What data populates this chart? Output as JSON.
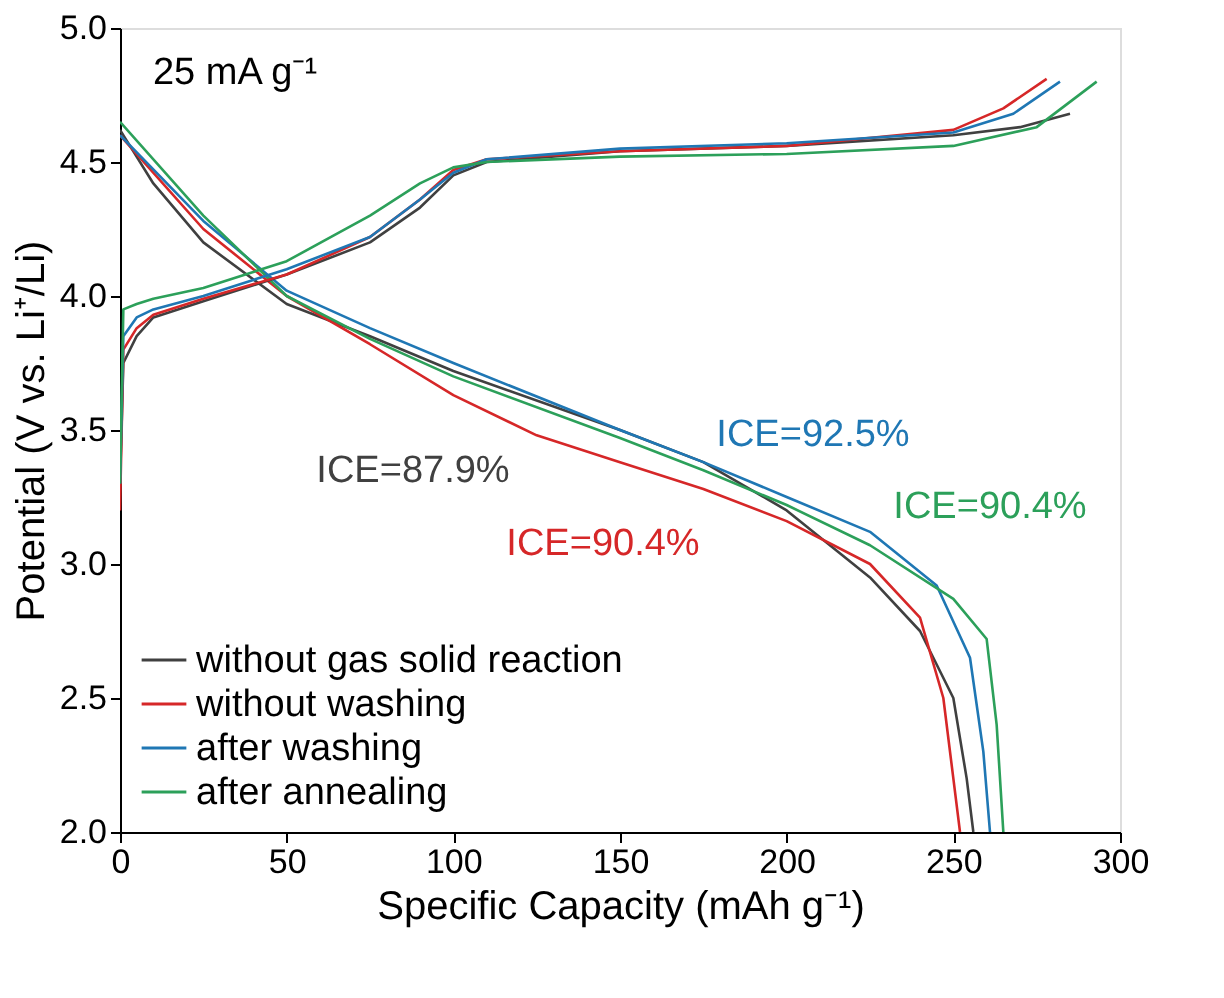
{
  "chart_data": {
    "type": "line",
    "xlabel": "Specific Capacity (mAh g⁻¹)",
    "ylabel": "Potential (V vs. Li⁺/Li)",
    "xlim": [
      0,
      300
    ],
    "xticks": [
      0,
      50,
      100,
      150,
      200,
      250,
      300
    ],
    "ylim": [
      2.0,
      5.0
    ],
    "yticks": [
      {
        "value": 2,
        "label": "2.0"
      },
      2.5,
      {
        "value": 3,
        "label": "3.0"
      },
      3.5,
      {
        "value": 4,
        "label": "4.0"
      },
      4.5,
      {
        "value": 5,
        "label": "5.0"
      }
    ],
    "grid": false,
    "legend": "bottom left",
    "marker": "none",
    "line_style": "solid",
    "annotations": [
      "25 mA g⁻¹",
      "ICE=87.9%",
      "ICE=90.4%",
      "ICE=92.5%",
      "ICE=90.4%"
    ],
    "series": [
      {
        "name": "without gas solid reaction",
        "color": "#404040",
        "x": [
          0,
          10,
          25,
          50,
          75,
          100,
          150,
          175,
          200,
          225,
          240,
          250,
          254,
          256
        ],
        "values": [
          4.62,
          4.42,
          4.2,
          3.97,
          3.85,
          3.72,
          3.5,
          3.38,
          3.2,
          2.95,
          2.75,
          2.5,
          2.2,
          2.0
        ]
      },
      {
        "name": "without washing",
        "color": "#d62728",
        "x": [
          0,
          25,
          50,
          75,
          100,
          125,
          150,
          175,
          200,
          225,
          240,
          247,
          250,
          252
        ],
        "values": [
          4.6,
          4.25,
          4.0,
          3.82,
          3.63,
          3.48,
          3.38,
          3.28,
          3.16,
          3.0,
          2.8,
          2.5,
          2.2,
          2.0
        ]
      },
      {
        "name": "after washing",
        "color": "#1f77b4",
        "x": [
          0,
          25,
          50,
          75,
          100,
          150,
          175,
          200,
          225,
          245,
          255,
          259,
          261
        ],
        "values": [
          4.6,
          4.28,
          4.02,
          3.88,
          3.75,
          3.5,
          3.38,
          3.25,
          3.12,
          2.92,
          2.65,
          2.3,
          2.0
        ]
      },
      {
        "name": "after annealing",
        "color": "#2ca05a",
        "x": [
          0,
          25,
          50,
          75,
          100,
          150,
          175,
          200,
          225,
          250,
          260,
          263,
          265
        ],
        "values": [
          4.65,
          4.3,
          4.0,
          3.84,
          3.7,
          3.47,
          3.35,
          3.22,
          3.07,
          2.87,
          2.72,
          2.4,
          2.0
        ]
      },
      {
        "color": "#404040",
        "x": [
          0,
          1,
          5,
          10,
          25,
          50,
          75,
          90,
          100,
          110,
          150,
          200,
          250,
          270,
          285
        ],
        "values": [
          3.3,
          3.75,
          3.85,
          3.92,
          3.98,
          4.08,
          4.2,
          4.33,
          4.45,
          4.5,
          4.54,
          4.56,
          4.6,
          4.63,
          4.68
        ]
      },
      {
        "color": "#d62728",
        "x": [
          0,
          1,
          5,
          10,
          25,
          50,
          75,
          90,
          100,
          110,
          150,
          200,
          250,
          265,
          278
        ],
        "values": [
          3.2,
          3.8,
          3.88,
          3.93,
          3.99,
          4.08,
          4.22,
          4.36,
          4.47,
          4.51,
          4.54,
          4.56,
          4.62,
          4.7,
          4.81
        ]
      },
      {
        "color": "#1f77b4",
        "x": [
          0,
          1,
          5,
          10,
          25,
          50,
          75,
          90,
          100,
          110,
          150,
          200,
          250,
          268,
          282
        ],
        "values": [
          3.3,
          3.85,
          3.92,
          3.95,
          4.0,
          4.1,
          4.22,
          4.36,
          4.46,
          4.51,
          4.55,
          4.57,
          4.61,
          4.68,
          4.8
        ]
      },
      {
        "color": "#2ca05a",
        "x": [
          0,
          1,
          5,
          10,
          25,
          50,
          75,
          90,
          100,
          110,
          150,
          200,
          250,
          275,
          293
        ],
        "values": [
          3.3,
          3.95,
          3.97,
          3.99,
          4.03,
          4.13,
          4.3,
          4.42,
          4.48,
          4.5,
          4.52,
          4.53,
          4.56,
          4.63,
          4.8
        ]
      }
    ]
  }
}
